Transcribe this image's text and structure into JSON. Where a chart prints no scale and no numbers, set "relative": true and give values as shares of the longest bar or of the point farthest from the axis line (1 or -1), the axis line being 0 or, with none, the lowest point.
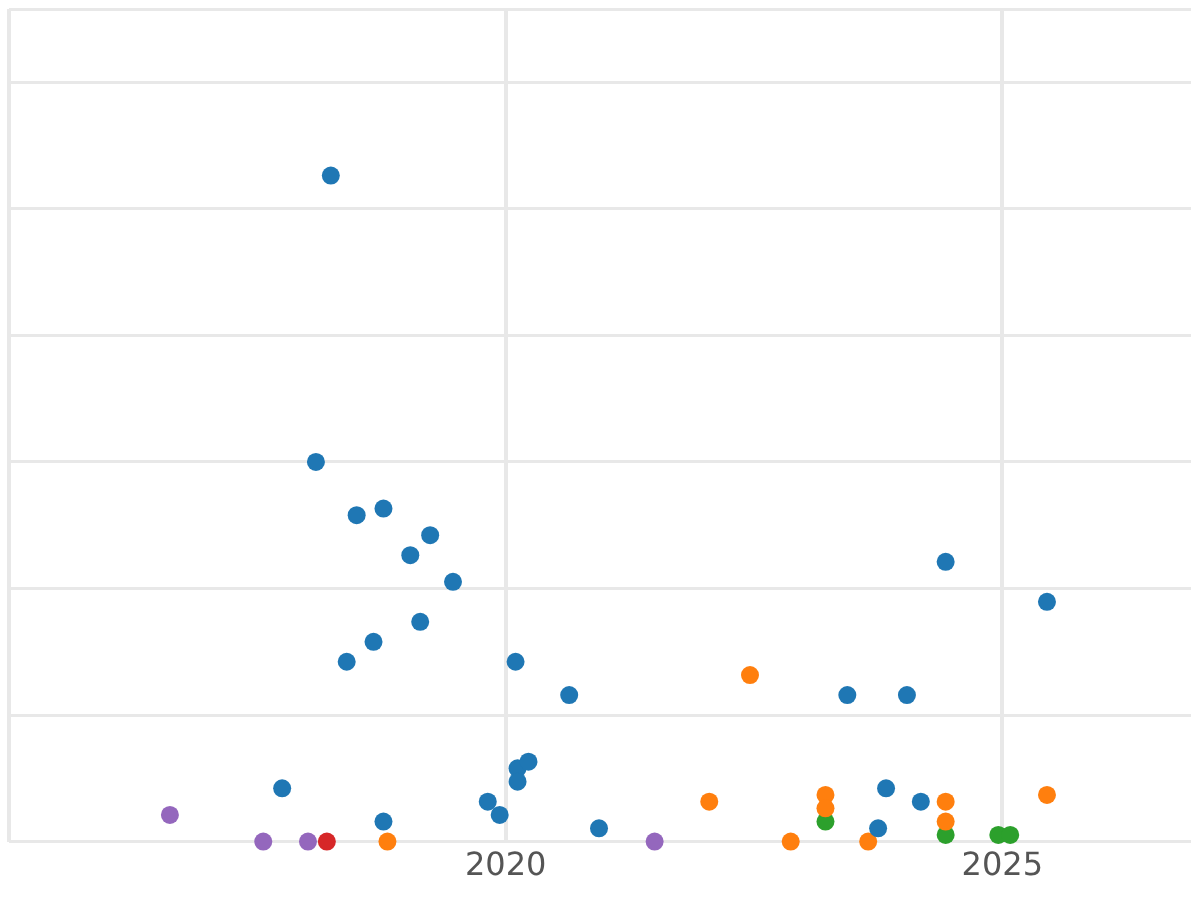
{
  "chart_data": {
    "type": "scatter",
    "relative": true,
    "grid": true,
    "legend": false,
    "marker": "circle",
    "xlim": [
      2015,
      2026.9
    ],
    "xticks": [
      {
        "value": 2015,
        "label": null
      },
      2020,
      2025
    ],
    "series": [
      {
        "color": "#1f77b4",
        "x": [
          2018.24,
          2018.09,
          2018.5,
          2018.77,
          2019.24,
          2019.04,
          2019.47,
          2019.14,
          2018.67,
          2018.4,
          2020.1,
          2020.64,
          2023.44,
          2024.04,
          2024.43,
          2025.45,
          2017.75,
          2018.77,
          2019.82,
          2019.94,
          2020.12,
          2020.23,
          2020.12,
          2020.94,
          2023.83,
          2024.18,
          2023.75
        ],
        "values": [
          1.0,
          0.57,
          0.49,
          0.5,
          0.46,
          0.43,
          0.39,
          0.33,
          0.3,
          0.27,
          0.27,
          0.22,
          0.22,
          0.22,
          0.42,
          0.36,
          0.08,
          0.03,
          0.06,
          0.04,
          0.11,
          0.12,
          0.09,
          0.02,
          0.08,
          0.06,
          0.02
        ]
      },
      {
        "color": "#ff7f0e",
        "x": [
          2022.46,
          2022.05,
          2023.22,
          2023.22,
          2024.43,
          2024.43,
          2025.45,
          2018.81,
          2022.87,
          2023.65
        ],
        "values": [
          0.25,
          0.06,
          0.07,
          0.05,
          0.06,
          0.03,
          0.07,
          0,
          0,
          0
        ]
      },
      {
        "color": "#2ca02c",
        "x": [
          2023.22,
          2024.43,
          2024.96,
          2025.08
        ],
        "values": [
          0.03,
          0.01,
          0.01,
          0.01
        ]
      },
      {
        "color": "#d62728",
        "x": [
          2018.2
        ],
        "values": [
          0
        ]
      },
      {
        "color": "#9467bd",
        "x": [
          2016.62,
          2017.56,
          2018.01,
          2021.5
        ],
        "values": [
          0.04,
          0,
          0,
          0
        ]
      }
    ]
  }
}
